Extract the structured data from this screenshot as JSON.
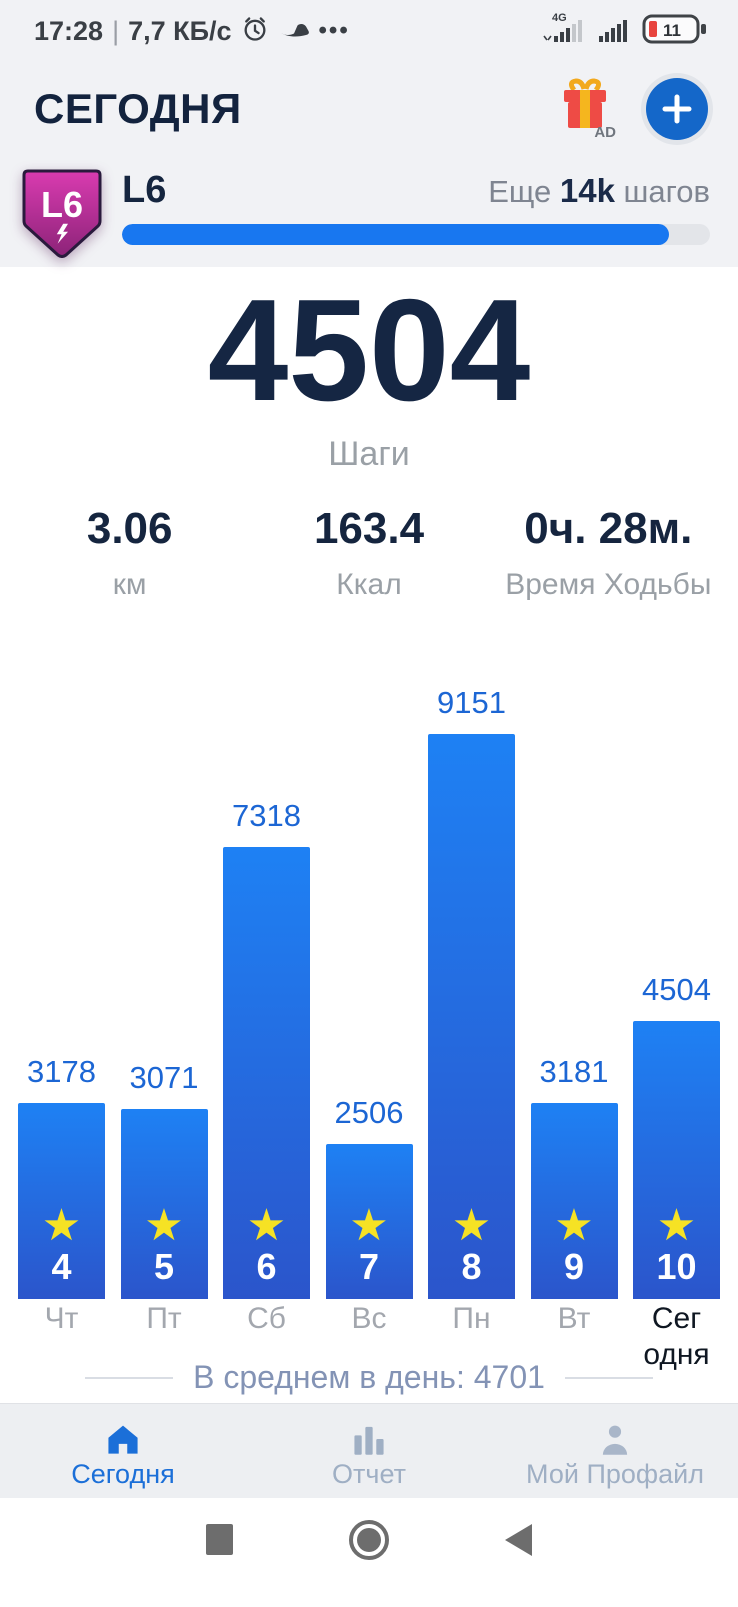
{
  "status_bar": {
    "time": "17:28",
    "separator": "|",
    "net_speed": "7,7 КБ/с",
    "more_dots": "•••",
    "network_type": "4G",
    "battery_percent": "11",
    "icons": [
      "alarm-clock-icon",
      "sneaker-icon",
      "signal-4g-icon",
      "signal-icon",
      "battery-icon"
    ]
  },
  "header": {
    "title": "СЕГОДНЯ",
    "gift_ad_label": "AD",
    "icons": [
      "gift-ad-icon",
      "plus-button"
    ]
  },
  "level": {
    "badge_label": "L6",
    "level_name": "L6",
    "remaining_prefix": "Еще ",
    "remaining_value": "14k",
    "remaining_suffix": " шагов",
    "progress_percent": 93
  },
  "today": {
    "steps": "4504",
    "steps_label": "Шаги",
    "stats": [
      {
        "value": "3.06",
        "label": "км"
      },
      {
        "value": "163.4",
        "label": "Ккал"
      },
      {
        "value": "0ч. 28м.",
        "label": "Время Ходьбы"
      }
    ]
  },
  "chart_data": {
    "type": "bar",
    "categories": [
      "Чт",
      "Пт",
      "Сб",
      "Вс",
      "Пн",
      "Вт",
      "Сег одня"
    ],
    "values": [
      3178,
      3071,
      7318,
      2506,
      9151,
      3181,
      4504
    ],
    "day_numbers": [
      4,
      5,
      6,
      7,
      8,
      9,
      10
    ],
    "today_index": 6,
    "ylim": [
      0,
      9151
    ],
    "grid": false,
    "value_labels": "above bars, blue",
    "bar_color_top": "#1e81f4",
    "bar_color_bottom": "#2b55cb",
    "value_label_color": "#1c66d4",
    "star_color": "#f6e224",
    "star_icon": "star-icon"
  },
  "average": {
    "text": "В среднем в день: 4701"
  },
  "bottom_nav": {
    "items": [
      {
        "label": "Сегодня",
        "icon": "home-icon",
        "active": true
      },
      {
        "label": "Отчет",
        "icon": "report-icon",
        "active": false
      },
      {
        "label": "Мой Профайл",
        "icon": "profile-icon",
        "active": false
      }
    ]
  },
  "android_nav": {
    "icons": [
      "recents-square-icon",
      "home-circle-icon",
      "back-triangle-icon"
    ]
  },
  "colors": {
    "accent_blue": "#1877f0",
    "dark_navy": "#152643",
    "badge_magenta_top": "#d93bb0",
    "badge_magenta_bottom": "#8c2378",
    "battery_low_red": "#e8443e",
    "background_gray": "#f1f2f5"
  }
}
